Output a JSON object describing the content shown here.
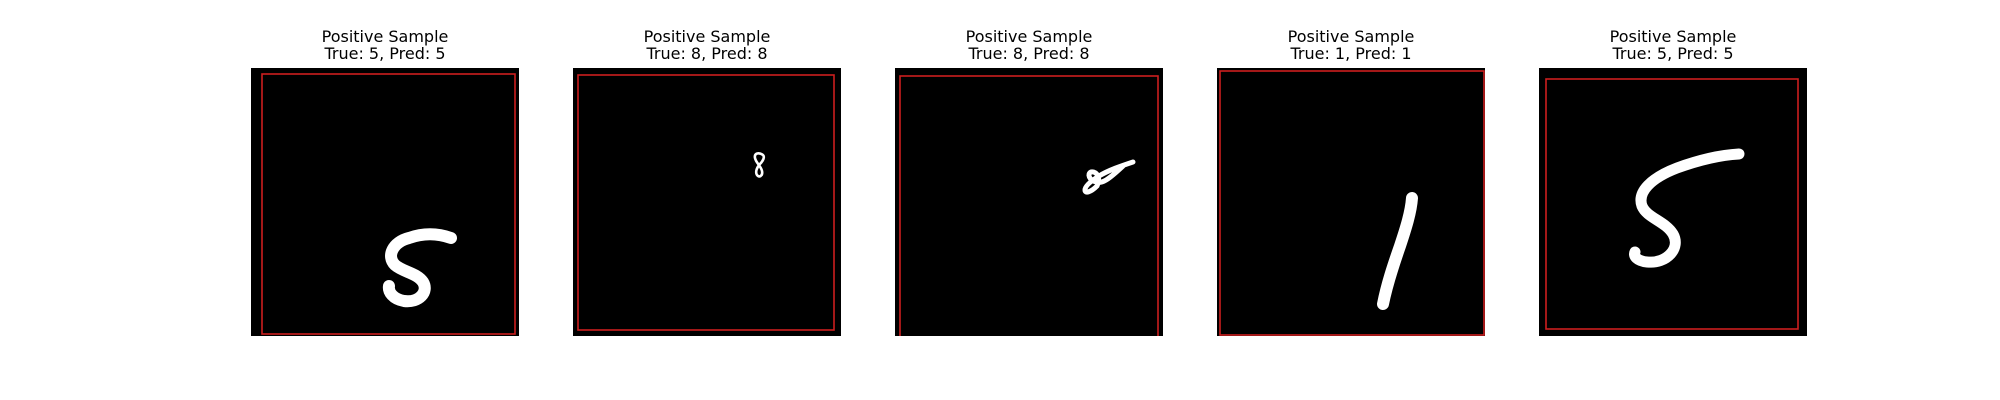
{
  "panels": [
    {
      "title": "Positive Sample",
      "subtitle": "True: 5, Pred: 5",
      "digit": "5"
    },
    {
      "title": "Positive Sample",
      "subtitle": "True: 8, Pred: 8",
      "digit": "8"
    },
    {
      "title": "Positive Sample",
      "subtitle": "True: 8, Pred: 8",
      "digit": "8"
    },
    {
      "title": "Positive Sample",
      "subtitle": "True: 1, Pred: 1",
      "digit": "1"
    },
    {
      "title": "Positive Sample",
      "subtitle": "True: 5, Pred: 5",
      "digit": "5"
    }
  ],
  "colors": {
    "background": "#000000",
    "box": "#cc1f1f",
    "digit": "#ffffff"
  }
}
